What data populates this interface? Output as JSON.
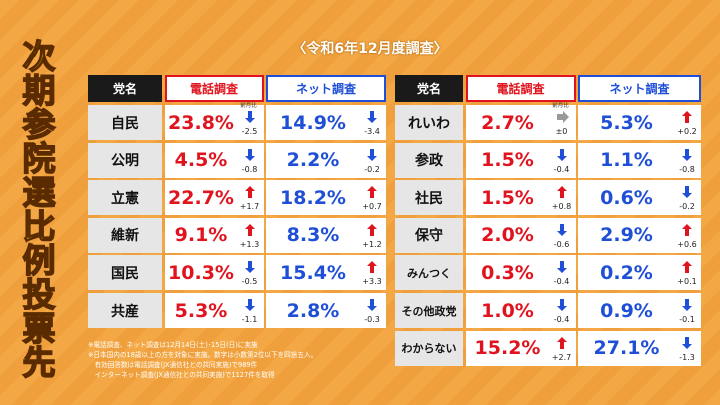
{
  "title": "次期参院選比例投票先",
  "subtitle": "〈令和6年12月度調査〉",
  "tables": [
    {
      "headers": [
        "党名",
        "電話調査",
        "ネット調査"
      ],
      "change_label": "前月比",
      "rows": [
        [
          "自民",
          "23.8%",
          "-2.5",
          "14.9%",
          "-3.4"
        ],
        [
          "公明",
          "4.5%",
          "-0.8",
          "2.2%",
          "-0.2"
        ],
        [
          "立憲",
          "22.7%",
          "+1.7",
          "18.2%",
          "+0.7"
        ],
        [
          "維新",
          "9.1%",
          "+1.3",
          "8.3%",
          "+1.2"
        ],
        [
          "国民",
          "10.3%",
          "-0.5",
          "15.4%",
          "+3.3"
        ],
        [
          "共産",
          "5.3%",
          "-1.1",
          "2.8%",
          "-0.3"
        ]
      ]
    },
    {
      "headers": [
        "党名",
        "電話調査",
        "ネット調査"
      ],
      "change_label": "前月比",
      "rows": [
        [
          "れいわ",
          "2.7%",
          "±0",
          "5.3%",
          "+0.2"
        ],
        [
          "参政",
          "1.5%",
          "-0.4",
          "1.1%",
          "-0.8"
        ],
        [
          "社民",
          "1.5%",
          "+0.8",
          "0.6%",
          "-0.2"
        ],
        [
          "保守",
          "2.0%",
          "-0.6",
          "2.9%",
          "+0.6"
        ],
        [
          "みんつく",
          "0.3%",
          "-0.4",
          "0.2%",
          "+0.1"
        ],
        [
          "その他政党",
          "1.0%",
          "-0.4",
          "0.9%",
          "-0.1"
        ],
        [
          "わからない",
          "15.2%",
          "+2.7",
          "27.1%",
          "-1.3"
        ]
      ]
    }
  ],
  "notes": [
    "※電話調査、ネット調査は12月14日(土)･15日(日)に実施",
    "※日本国内の18歳以上の方を対象に実施。数字は小数第2位以下を四捨五入。",
    "　有効回答数は電話調査(JX通信社との共同実施)で989件",
    "　インターネット調査(JX通信社との共同実施)で1127件を取得"
  ]
}
